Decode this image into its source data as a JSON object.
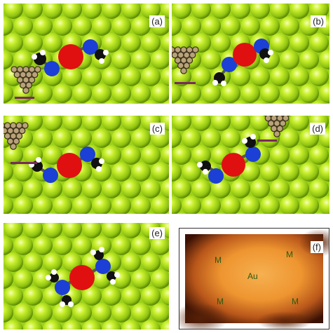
{
  "colors": {
    "gold_atom": "#b5e61d",
    "oxygen": "#e01010",
    "nitrogen": "#1c3fd6",
    "carbon": "#111111",
    "hydrogen": "#ffffff",
    "tip_atom": "#b8a27a",
    "tip_bar": "#7a2a5e",
    "stm_dark": "#2a0c02",
    "stm_bright": "#f3a040",
    "stm_text": "#2a5a10"
  },
  "panels": [
    {
      "id": "a",
      "label": "(a)",
      "has_tip": true
    },
    {
      "id": "b",
      "label": "(b)",
      "has_tip": true
    },
    {
      "id": "c",
      "label": "(c)",
      "has_tip": true
    },
    {
      "id": "d",
      "label": "(d)",
      "has_tip": true
    },
    {
      "id": "e",
      "label": "(e)",
      "has_tip": false
    }
  ],
  "stm_panel": {
    "label": "(f)",
    "markers": [
      "M",
      "M",
      "Au",
      "M",
      "M"
    ]
  }
}
